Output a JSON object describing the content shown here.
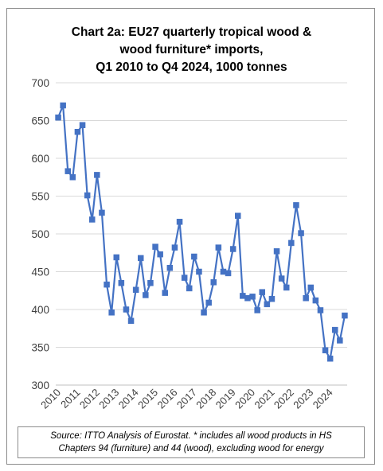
{
  "chart_data": {
    "type": "line",
    "title_lines": [
      "Chart 2a: EU27 quarterly tropical wood &",
      "wood furniture* imports,",
      "Q1 2010 to Q4 2024, 1000 tonnes"
    ],
    "xlabel": "",
    "ylabel": "",
    "ylim": [
      300,
      700
    ],
    "yticks": [
      300,
      350,
      400,
      450,
      500,
      550,
      600,
      650,
      700
    ],
    "x_tick_labels": [
      "2010",
      "2011",
      "2012",
      "2013",
      "2014",
      "2015",
      "2016",
      "2017",
      "2018",
      "2019",
      "2020",
      "2021",
      "2022",
      "2023",
      "2024"
    ],
    "grid": true,
    "legend": "none",
    "series": [
      {
        "color": "#4472C4",
        "values": [
          654,
          670,
          583,
          575,
          635,
          644,
          551,
          519,
          578,
          528,
          433,
          396,
          469,
          435,
          400,
          385,
          426,
          468,
          419,
          435,
          483,
          473,
          422,
          455,
          482,
          516,
          442,
          428,
          470,
          450,
          396,
          409,
          436,
          482,
          450,
          448,
          480,
          524,
          418,
          415,
          417,
          399,
          423,
          407,
          414,
          477,
          441,
          429,
          488,
          538,
          501,
          415,
          429,
          412,
          399,
          346,
          335,
          373,
          359,
          392
        ]
      }
    ]
  },
  "source_note": {
    "line1": "Source: ITTO Analysis of Eurostat. * includes all wood products in HS",
    "line2": "Chapters 94 (furniture) and 44 (wood), excluding wood for energy"
  }
}
